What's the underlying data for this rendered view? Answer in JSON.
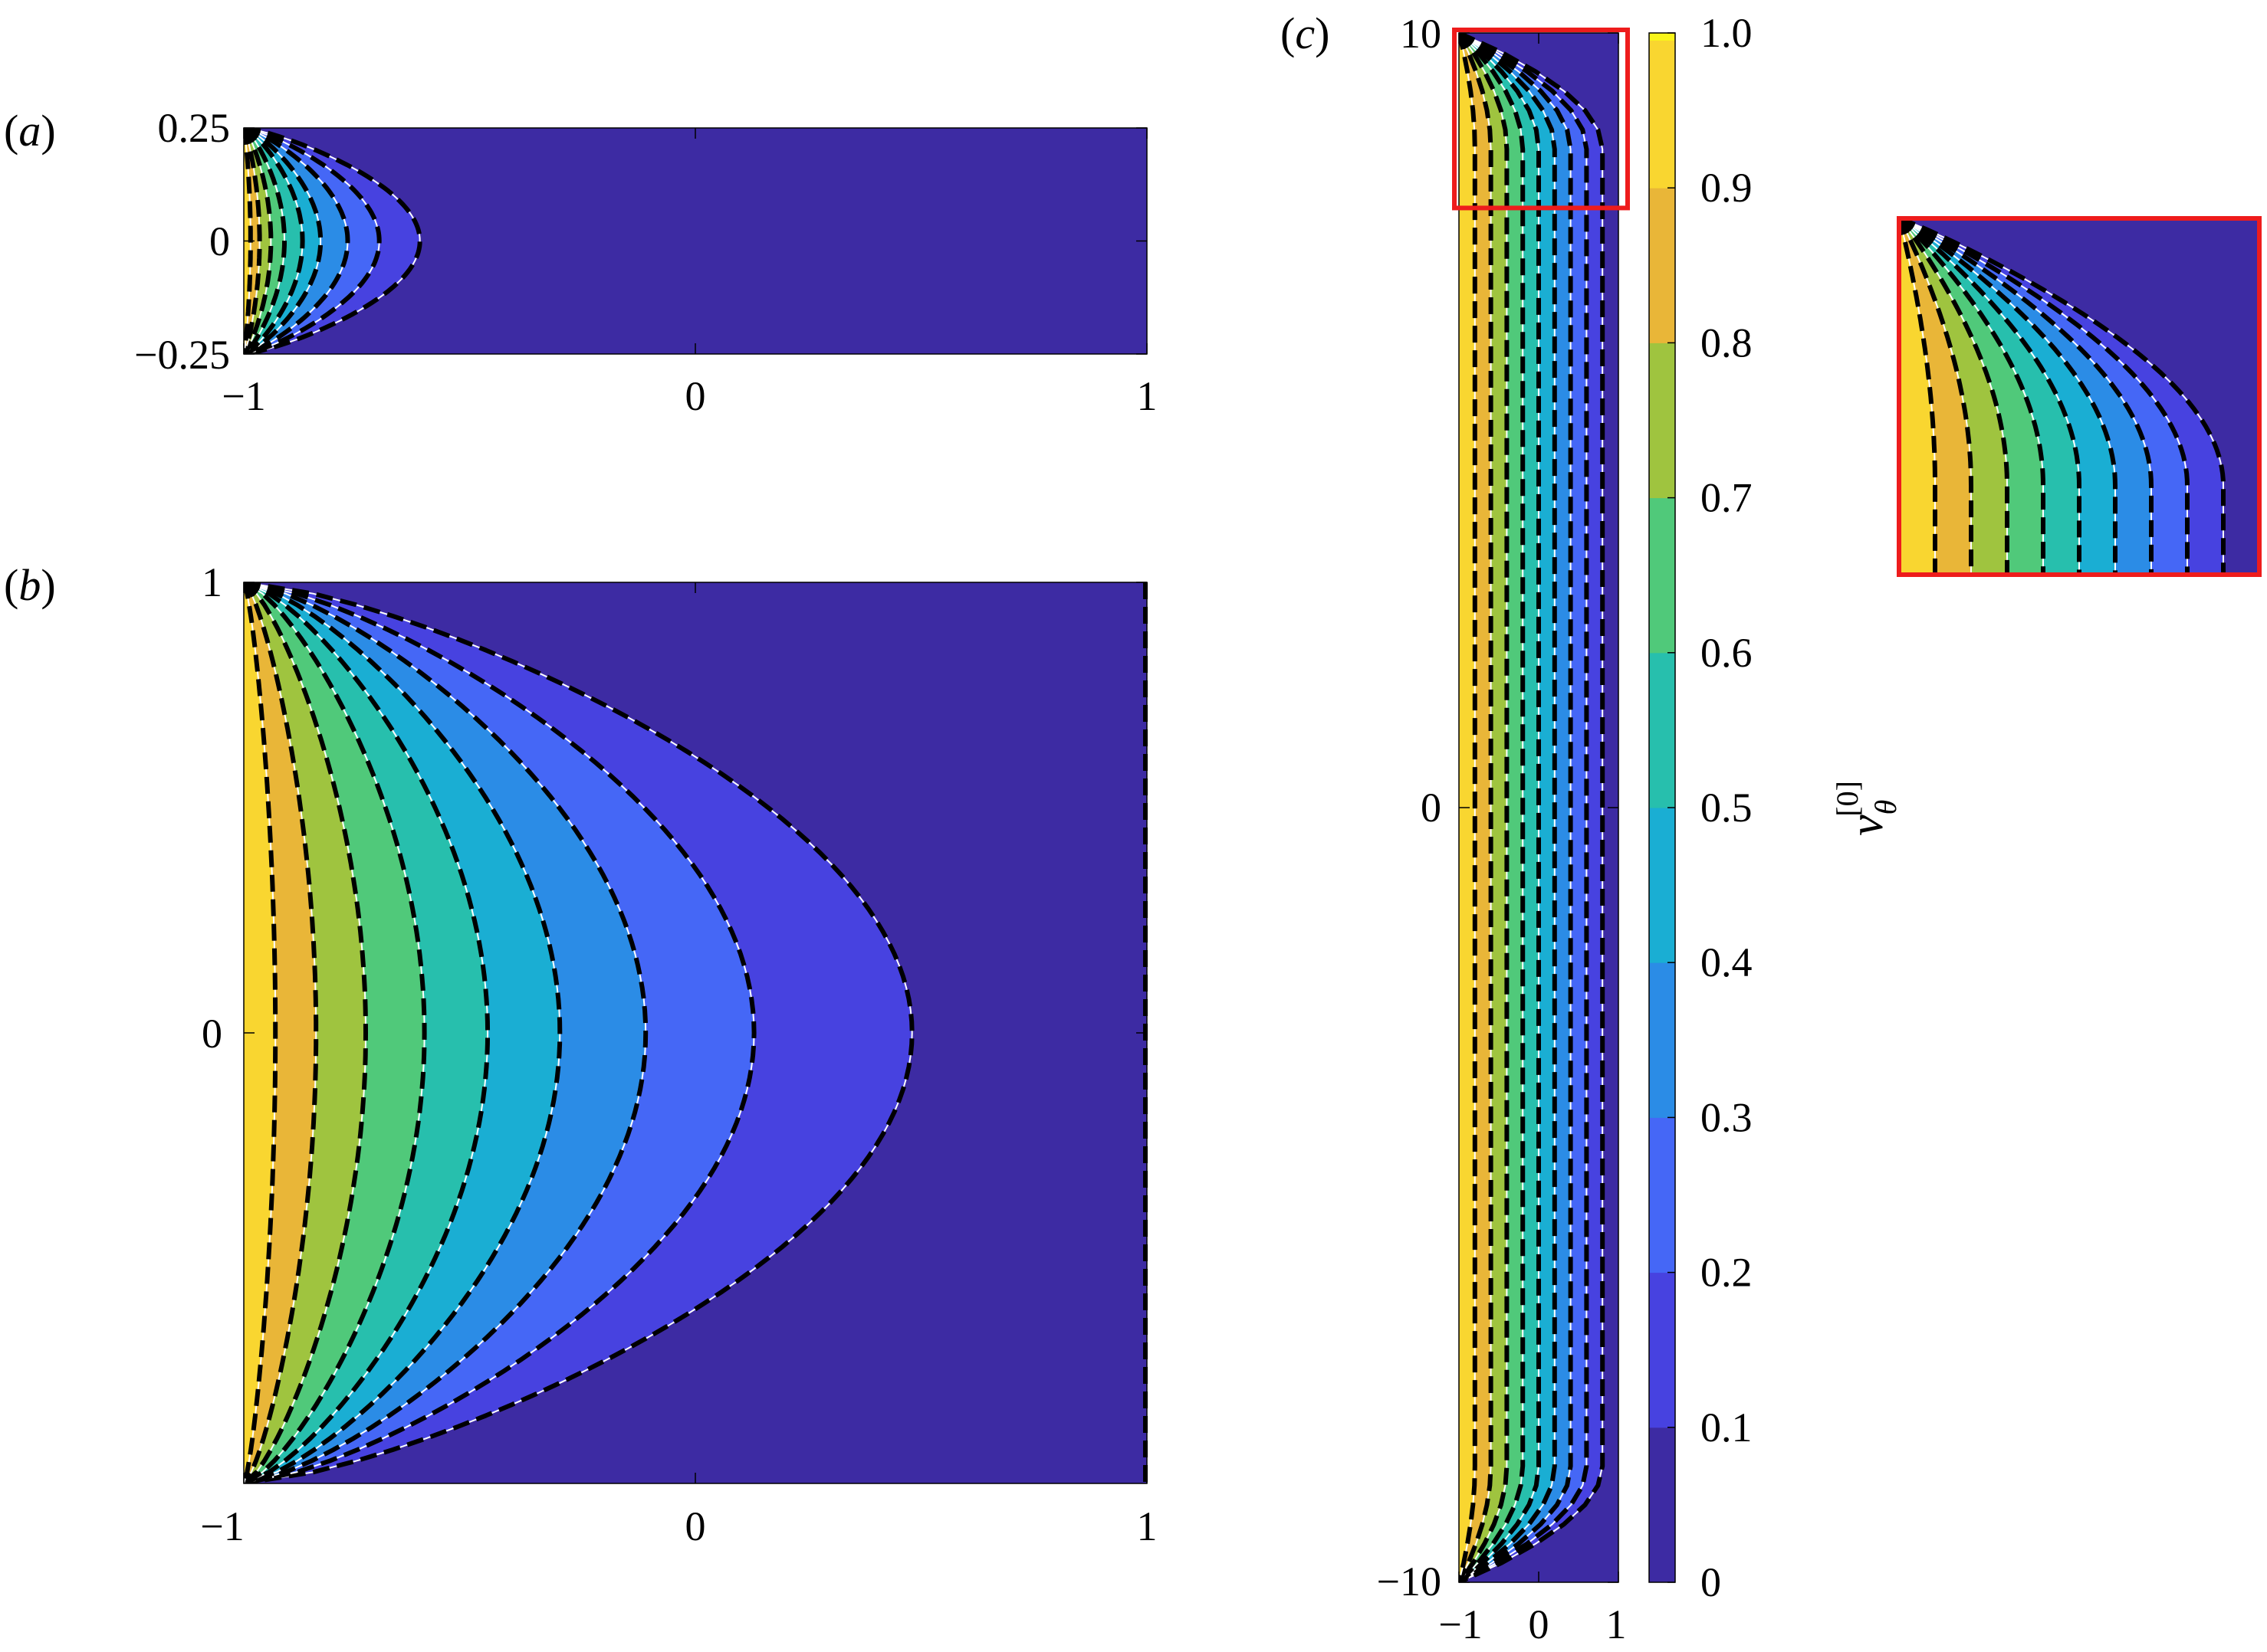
{
  "chart_data": [
    {
      "panel": "(a)",
      "panel_letter": "a",
      "type": "heatmap",
      "xlim": [
        -1,
        1
      ],
      "ylim": [
        -0.25,
        0.25
      ],
      "x_ticks": [
        -1,
        0,
        1
      ],
      "x_tick_labels": [
        "−1",
        "0",
        "1"
      ],
      "y_ticks": [
        0.25,
        0,
        -0.25
      ],
      "y_tick_labels": [
        "0.25",
        "0",
        "−0.25"
      ],
      "contour_levels": [
        0.1,
        0.2,
        0.3,
        0.4,
        0.5,
        0.6,
        0.7,
        0.8,
        0.9
      ],
      "contour_rightmost_x": {
        "0.1": -0.61,
        "0.2": -0.7,
        "0.3": -0.77,
        "0.4": -0.83,
        "0.5": -0.87,
        "0.6": -0.91,
        "0.7": -0.94,
        "0.8": -0.965,
        "0.9": -0.985
      },
      "line_styles": [
        "solid thin white",
        "dashed thick black"
      ]
    },
    {
      "panel": "(b)",
      "panel_letter": "b",
      "type": "heatmap",
      "xlim": [
        -1,
        1
      ],
      "ylim": [
        -1,
        1
      ],
      "x_ticks": [
        -1,
        0,
        1
      ],
      "x_tick_labels": [
        "−1",
        "0",
        "1"
      ],
      "y_ticks": [
        1,
        0
      ],
      "y_tick_labels": [
        "1",
        "0"
      ],
      "contour_levels": [
        0.1,
        0.2,
        0.3,
        0.4,
        0.5,
        0.6,
        0.7,
        0.8,
        0.9
      ],
      "contour_rightmost_x": {
        "0.1": 0.48,
        "0.2": 0.13,
        "0.3": -0.11,
        "0.4": -0.3,
        "0.5": -0.46,
        "0.6": -0.6,
        "0.7": -0.73,
        "0.8": -0.84,
        "0.9": -0.93
      },
      "line_styles": [
        "solid thin white",
        "dashed thick black"
      ]
    },
    {
      "panel": "(c)",
      "panel_letter": "c",
      "type": "heatmap",
      "xlim": [
        -1,
        1
      ],
      "ylim": [
        -10,
        10
      ],
      "x_ticks": [
        -1,
        0,
        1
      ],
      "x_tick_labels": [
        "−1",
        "0",
        "1"
      ],
      "y_ticks": [
        10,
        0,
        -10
      ],
      "y_tick_labels": [
        "10",
        "0",
        "−10"
      ],
      "contour_levels": [
        0.1,
        0.2,
        0.3,
        0.4,
        0.5,
        0.6,
        0.7,
        0.8,
        0.9
      ],
      "contour_rightmost_x": {
        "0.1": 0.8,
        "0.2": 0.6,
        "0.3": 0.4,
        "0.4": 0.2,
        "0.5": 0.0,
        "0.6": -0.2,
        "0.7": -0.4,
        "0.8": -0.6,
        "0.9": -0.8
      },
      "inset_highlight_ylim": [
        7.8,
        10
      ],
      "highlight_color": "#ee1c1c"
    },
    {
      "type": "colorbar",
      "label": "vθ[0]",
      "range": [
        0,
        1
      ],
      "ticks": [
        1.0,
        0.9,
        0.8,
        0.7,
        0.6,
        0.5,
        0.4,
        0.3,
        0.2,
        0.1,
        0
      ],
      "tick_labels": [
        "1.0",
        "0.9",
        "0.8",
        "0.7",
        "0.6",
        "0.5",
        "0.4",
        "0.3",
        "0.2",
        "0.1",
        "0"
      ],
      "band_colors": [
        "#3d2ba3",
        "#4742e0",
        "#4567f6",
        "#2b8ce6",
        "#1aaed3",
        "#27bfad",
        "#50c97a",
        "#9fc43f",
        "#e9b638",
        "#f9d630"
      ]
    }
  ]
}
